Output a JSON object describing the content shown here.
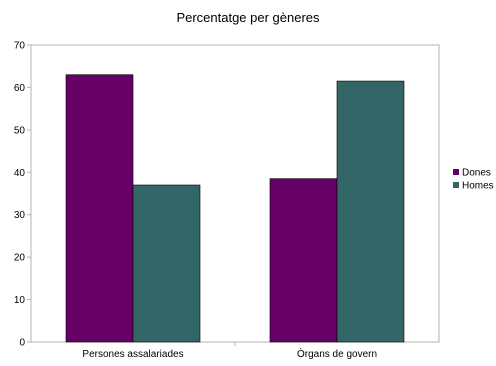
{
  "chart_data": {
    "type": "bar",
    "title": "Percentatge per gèneres",
    "xlabel": "",
    "ylabel": "",
    "categories": [
      "Persones assalariades",
      "Òrgans de govern"
    ],
    "series": [
      {
        "name": "Dones",
        "values": [
          63,
          38.5
        ],
        "color": "#660066"
      },
      {
        "name": "Homes",
        "values": [
          37,
          61.5
        ],
        "color": "#336666"
      }
    ],
    "ylim": [
      0,
      70
    ],
    "yticks": [
      0,
      10,
      20,
      30,
      40,
      50,
      60,
      70
    ],
    "grid": false,
    "legend": "right"
  }
}
